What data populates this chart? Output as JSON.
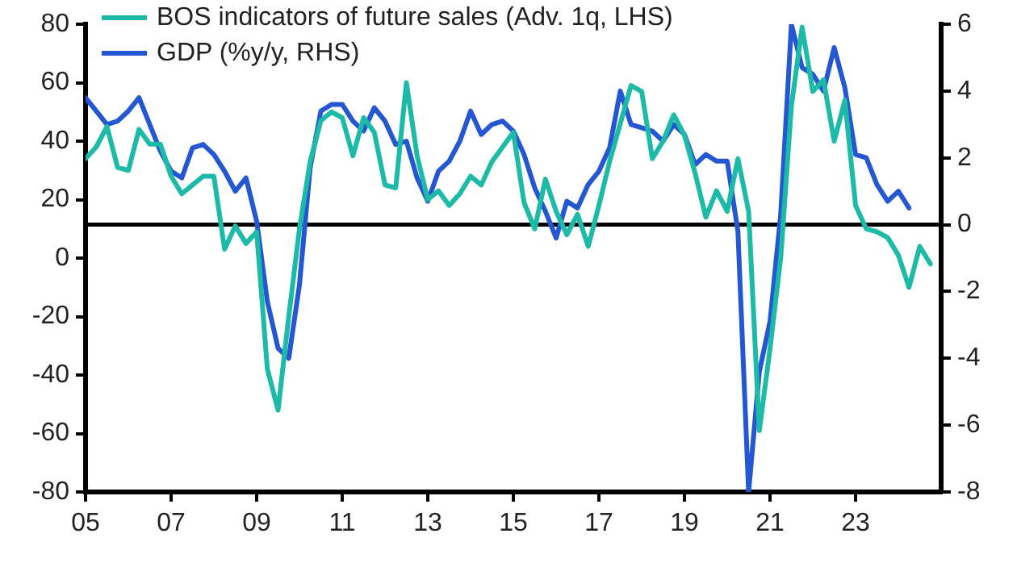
{
  "chart_data": {
    "type": "line",
    "legend": "top left",
    "grid": false,
    "x": [
      2005,
      2005.25,
      2005.5,
      2005.75,
      2006,
      2006.25,
      2006.5,
      2006.75,
      2007,
      2007.25,
      2007.5,
      2007.75,
      2008,
      2008.25,
      2008.5,
      2008.75,
      2009,
      2009.25,
      2009.5,
      2009.75,
      2010,
      2010.25,
      2010.5,
      2010.75,
      2011,
      2011.25,
      2011.5,
      2011.75,
      2012,
      2012.25,
      2012.5,
      2012.75,
      2013,
      2013.25,
      2013.5,
      2013.75,
      2014,
      2014.25,
      2014.5,
      2014.75,
      2015,
      2015.25,
      2015.5,
      2015.75,
      2016,
      2016.25,
      2016.5,
      2016.75,
      2017,
      2017.25,
      2017.5,
      2017.75,
      2018,
      2018.25,
      2018.5,
      2018.75,
      2019,
      2019.25,
      2019.5,
      2019.75,
      2020,
      2020.25,
      2020.5,
      2020.75,
      2021,
      2021.25,
      2021.5,
      2021.75,
      2022,
      2022.25,
      2022.5,
      2022.75,
      2023,
      2023.25,
      2023.5,
      2023.75,
      2024,
      2024.25,
      2024.5,
      2024.75
    ],
    "series": [
      {
        "name": "BOS indicators of future sales (Adv. 1q, LHS)",
        "color": "#1dbaa8",
        "values": [
          34,
          38,
          45,
          31,
          30,
          44,
          39,
          39,
          28,
          22,
          25,
          28,
          28,
          3,
          11,
          5,
          9,
          -38,
          -52,
          -20,
          10,
          33,
          47,
          50,
          48,
          35,
          48,
          43,
          25,
          24,
          60,
          35,
          20,
          23,
          18,
          22,
          28,
          25,
          33,
          38,
          43,
          19,
          10,
          27,
          16,
          8,
          15,
          4,
          18,
          33,
          46,
          59,
          57,
          34,
          40,
          49,
          42,
          29,
          14,
          23,
          16,
          34,
          16,
          -59,
          -31,
          0,
          52,
          79,
          57,
          61,
          40,
          54,
          18,
          10,
          9,
          7,
          1,
          -10,
          4,
          -2
        ]
      },
      {
        "name": "GDP (%y/y, RHS)",
        "color": "#2457d1",
        "axis": "y2",
        "values": [
          3.8,
          3.4,
          3.0,
          3.1,
          3.4,
          3.8,
          3.0,
          2.2,
          1.6,
          1.4,
          2.3,
          2.4,
          2.1,
          1.6,
          1.0,
          1.4,
          0.1,
          -2.3,
          -3.7,
          -4.0,
          -1.8,
          1.7,
          3.4,
          3.6,
          3.6,
          3.1,
          2.8,
          3.5,
          3.1,
          2.4,
          2.5,
          1.4,
          0.7,
          1.6,
          1.9,
          2.5,
          3.4,
          2.7,
          3.0,
          3.1,
          2.8,
          2.1,
          1.1,
          0.4,
          -0.4,
          0.7,
          0.5,
          1.2,
          1.6,
          2.3,
          4.0,
          3.0,
          2.9,
          2.8,
          2.5,
          3.0,
          2.7,
          1.8,
          2.1,
          1.9,
          1.9,
          -0.2,
          -8,
          -4.4,
          -2.9,
          0.3,
          6,
          4.7,
          4.5,
          4.0,
          5.3,
          4.1,
          2.1,
          2.0,
          1.2,
          0.7,
          1.0,
          0.5,
          null,
          null
        ]
      }
    ],
    "xlim": [
      2005,
      2025
    ],
    "xticks": [
      {
        "value": 2005,
        "label": "05"
      },
      {
        "value": 2007,
        "label": "07"
      },
      {
        "value": 2009,
        "label": "09"
      },
      {
        "value": 2011,
        "label": "11"
      },
      {
        "value": 2013,
        "label": "13"
      },
      {
        "value": 2015,
        "label": "15"
      },
      {
        "value": 2017,
        "label": "17"
      },
      {
        "value": 2019,
        "label": "19"
      },
      {
        "value": 2021,
        "label": "21"
      },
      {
        "value": 2023,
        "label": "23"
      }
    ],
    "ylim": [
      -80,
      80
    ],
    "yticks": [
      -80,
      -60,
      -40,
      -20,
      0,
      20,
      40,
      60,
      80
    ],
    "y2lim": [
      -8,
      6
    ],
    "y2ticks": [
      -8,
      -6,
      -4,
      -2,
      0,
      2,
      4,
      6
    ],
    "ref_lines": [
      {
        "axis": "y2",
        "value": 0,
        "color": "#000000"
      }
    ]
  }
}
